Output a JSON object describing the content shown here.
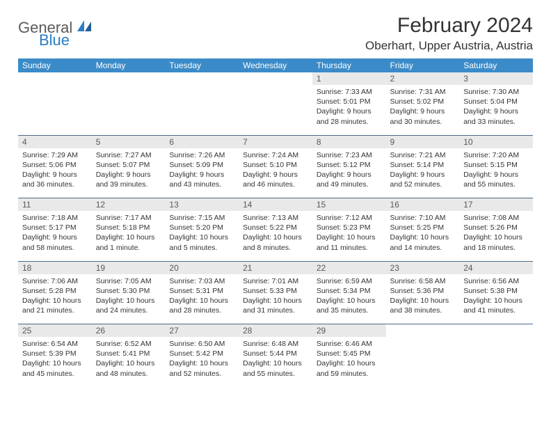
{
  "logo": {
    "text1": "General",
    "text2": "Blue"
  },
  "title": "February 2024",
  "location": "Oberhart, Upper Austria, Austria",
  "colors": {
    "header_bg": "#3b8bc9",
    "header_fg": "#ffffff",
    "daynum_bg": "#e9e9e9",
    "daynum_fg": "#595959",
    "rule": "#4a6a85",
    "logo_general": "#5a5a5a",
    "logo_blue": "#2b7cc4"
  },
  "dayHeaders": [
    "Sunday",
    "Monday",
    "Tuesday",
    "Wednesday",
    "Thursday",
    "Friday",
    "Saturday"
  ],
  "weeks": [
    [
      null,
      null,
      null,
      null,
      {
        "n": "1",
        "sunrise": "7:33 AM",
        "sunset": "5:01 PM",
        "daylight": "9 hours and 28 minutes."
      },
      {
        "n": "2",
        "sunrise": "7:31 AM",
        "sunset": "5:02 PM",
        "daylight": "9 hours and 30 minutes."
      },
      {
        "n": "3",
        "sunrise": "7:30 AM",
        "sunset": "5:04 PM",
        "daylight": "9 hours and 33 minutes."
      }
    ],
    [
      {
        "n": "4",
        "sunrise": "7:29 AM",
        "sunset": "5:06 PM",
        "daylight": "9 hours and 36 minutes."
      },
      {
        "n": "5",
        "sunrise": "7:27 AM",
        "sunset": "5:07 PM",
        "daylight": "9 hours and 39 minutes."
      },
      {
        "n": "6",
        "sunrise": "7:26 AM",
        "sunset": "5:09 PM",
        "daylight": "9 hours and 43 minutes."
      },
      {
        "n": "7",
        "sunrise": "7:24 AM",
        "sunset": "5:10 PM",
        "daylight": "9 hours and 46 minutes."
      },
      {
        "n": "8",
        "sunrise": "7:23 AM",
        "sunset": "5:12 PM",
        "daylight": "9 hours and 49 minutes."
      },
      {
        "n": "9",
        "sunrise": "7:21 AM",
        "sunset": "5:14 PM",
        "daylight": "9 hours and 52 minutes."
      },
      {
        "n": "10",
        "sunrise": "7:20 AM",
        "sunset": "5:15 PM",
        "daylight": "9 hours and 55 minutes."
      }
    ],
    [
      {
        "n": "11",
        "sunrise": "7:18 AM",
        "sunset": "5:17 PM",
        "daylight": "9 hours and 58 minutes."
      },
      {
        "n": "12",
        "sunrise": "7:17 AM",
        "sunset": "5:18 PM",
        "daylight": "10 hours and 1 minute."
      },
      {
        "n": "13",
        "sunrise": "7:15 AM",
        "sunset": "5:20 PM",
        "daylight": "10 hours and 5 minutes."
      },
      {
        "n": "14",
        "sunrise": "7:13 AM",
        "sunset": "5:22 PM",
        "daylight": "10 hours and 8 minutes."
      },
      {
        "n": "15",
        "sunrise": "7:12 AM",
        "sunset": "5:23 PM",
        "daylight": "10 hours and 11 minutes."
      },
      {
        "n": "16",
        "sunrise": "7:10 AM",
        "sunset": "5:25 PM",
        "daylight": "10 hours and 14 minutes."
      },
      {
        "n": "17",
        "sunrise": "7:08 AM",
        "sunset": "5:26 PM",
        "daylight": "10 hours and 18 minutes."
      }
    ],
    [
      {
        "n": "18",
        "sunrise": "7:06 AM",
        "sunset": "5:28 PM",
        "daylight": "10 hours and 21 minutes."
      },
      {
        "n": "19",
        "sunrise": "7:05 AM",
        "sunset": "5:30 PM",
        "daylight": "10 hours and 24 minutes."
      },
      {
        "n": "20",
        "sunrise": "7:03 AM",
        "sunset": "5:31 PM",
        "daylight": "10 hours and 28 minutes."
      },
      {
        "n": "21",
        "sunrise": "7:01 AM",
        "sunset": "5:33 PM",
        "daylight": "10 hours and 31 minutes."
      },
      {
        "n": "22",
        "sunrise": "6:59 AM",
        "sunset": "5:34 PM",
        "daylight": "10 hours and 35 minutes."
      },
      {
        "n": "23",
        "sunrise": "6:58 AM",
        "sunset": "5:36 PM",
        "daylight": "10 hours and 38 minutes."
      },
      {
        "n": "24",
        "sunrise": "6:56 AM",
        "sunset": "5:38 PM",
        "daylight": "10 hours and 41 minutes."
      }
    ],
    [
      {
        "n": "25",
        "sunrise": "6:54 AM",
        "sunset": "5:39 PM",
        "daylight": "10 hours and 45 minutes."
      },
      {
        "n": "26",
        "sunrise": "6:52 AM",
        "sunset": "5:41 PM",
        "daylight": "10 hours and 48 minutes."
      },
      {
        "n": "27",
        "sunrise": "6:50 AM",
        "sunset": "5:42 PM",
        "daylight": "10 hours and 52 minutes."
      },
      {
        "n": "28",
        "sunrise": "6:48 AM",
        "sunset": "5:44 PM",
        "daylight": "10 hours and 55 minutes."
      },
      {
        "n": "29",
        "sunrise": "6:46 AM",
        "sunset": "5:45 PM",
        "daylight": "10 hours and 59 minutes."
      },
      null,
      null
    ]
  ]
}
